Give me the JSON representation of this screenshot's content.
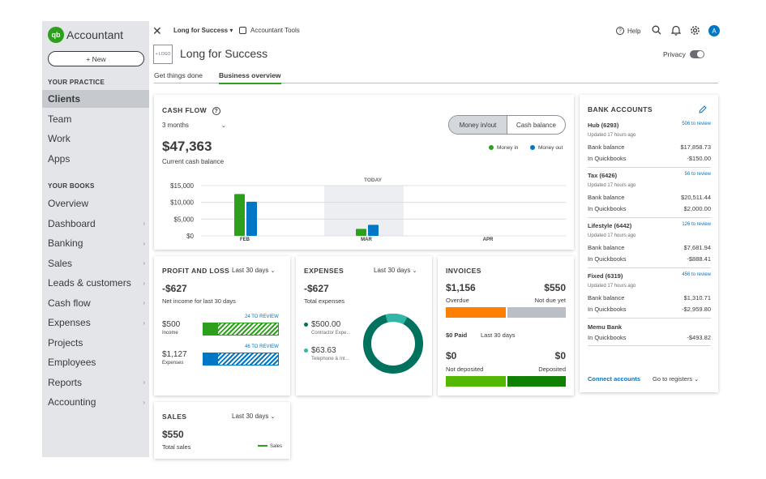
{
  "app": {
    "name": "Accountant",
    "logo_mark": "qb"
  },
  "sidebar": {
    "new_label": "+ New",
    "practice_label": "YOUR PRACTICE",
    "practice_items": [
      {
        "label": "Clients",
        "active": true
      },
      {
        "label": "Team"
      },
      {
        "label": "Work"
      },
      {
        "label": "Apps"
      }
    ],
    "books_label": "YOUR BOOKS",
    "books_items": [
      {
        "label": "Overview",
        "chevron": false
      },
      {
        "label": "Dashboard",
        "chevron": true
      },
      {
        "label": "Banking",
        "chevron": true
      },
      {
        "label": "Sales",
        "chevron": true
      },
      {
        "label": "Leads & customers",
        "chevron": true
      },
      {
        "label": "Cash flow",
        "chevron": true
      },
      {
        "label": "Expenses",
        "chevron": true
      },
      {
        "label": "Projects",
        "chevron": false
      },
      {
        "label": "Employees",
        "chevron": false
      },
      {
        "label": "Reports",
        "chevron": true
      },
      {
        "label": "Accounting",
        "chevron": true
      }
    ]
  },
  "topbar": {
    "company_menu": "Long for Success ▾",
    "tools_label": "Accountant Tools",
    "help_label": "Help",
    "avatar_initial": "A"
  },
  "header": {
    "logo_placeholder": "+ LOGO",
    "company_name": "Long for Success",
    "privacy_label": "Privacy"
  },
  "tabs": [
    {
      "label": "Get things done"
    },
    {
      "label": "Business overview",
      "active": true
    }
  ],
  "cashflow": {
    "title": "CASH FLOW",
    "period": "3 months",
    "toggle": [
      "Money in/out",
      "Cash balance"
    ],
    "balance": "$47,363",
    "balance_label": "Current cash balance",
    "legend_in": "Money in",
    "legend_out": "Money out",
    "today_label": "TODAY"
  },
  "chart_data": {
    "type": "bar",
    "categories": [
      "FEB",
      "MAR",
      "APR"
    ],
    "series": [
      {
        "name": "Money in",
        "color": "#2ca01c",
        "values": [
          12500,
          2100,
          0
        ]
      },
      {
        "name": "Money out",
        "color": "#0077c5",
        "values": [
          10200,
          3300,
          0
        ]
      }
    ],
    "yticks": [
      "$15,000",
      "$10,000",
      "$5,000",
      "$0"
    ],
    "ylim": [
      0,
      15000
    ],
    "highlight_category": "MAR"
  },
  "pnl": {
    "title": "PROFIT  AND LOSS",
    "period": "Last 30 days",
    "value": "-$627",
    "sub": "Net income for last 30 days",
    "income_value": "$500",
    "income_label": "Income",
    "income_review": "24 TO REVIEW",
    "expenses_value": "$1,127",
    "expenses_label": "Expenses",
    "expenses_review": "46 TO REVIEW",
    "income_fraction": 0.2,
    "expenses_fraction": 0.2
  },
  "expenses": {
    "title": "EXPENSES",
    "period": "Last 30 days",
    "value": "-$627",
    "sub": "Total expenses",
    "items": [
      {
        "amount": "$500.00",
        "label": "Contractor Expe...",
        "color": "#00725d"
      },
      {
        "amount": "$63.63",
        "label": "Telephone & Int...",
        "color": "#31b6a8"
      }
    ]
  },
  "invoices": {
    "title": "INVOICES",
    "overdue_value": "$1,156",
    "overdue_label": "Overdue",
    "notdue_value": "$550",
    "notdue_label": "Not due yet",
    "paid_label": "$0 Paid",
    "paid_period": "Last 30 days",
    "notdep_value": "$0",
    "notdep_label": "Not deposited",
    "dep_value": "$0",
    "dep_label": "Deposited",
    "colors": {
      "overdue": "#ff8000",
      "notdue": "#babec5",
      "notdep": "#53b700",
      "dep": "#108000"
    }
  },
  "sales": {
    "title": "SALES",
    "period": "Last 30 days",
    "value": "$550",
    "sub": "Total sales",
    "legend": "Sales"
  },
  "bank": {
    "title": "BANK ACCOUNTS",
    "accounts": [
      {
        "name": "Hub (6293)",
        "review": "506 to review",
        "updated": "Updated 17 hours ago",
        "bank_label": "Bank balance",
        "bank": "$17,858.73",
        "qb_label": "In Quickbooks",
        "qb": "-$150.00"
      },
      {
        "name": "Tax (6426)",
        "review": "56 to review",
        "updated": "Updated 17 hours ago",
        "bank_label": "Bank balance",
        "bank": "$20,511.44",
        "qb_label": "In Quickbooks",
        "qb": "$2,000.00"
      },
      {
        "name": "Lifestyle (6442)",
        "review": "126 to review",
        "updated": "Updated 17 hours ago",
        "bank_label": "Bank balance",
        "bank": "$7,681.94",
        "qb_label": "In Quickbooks",
        "qb": "-$888.41"
      },
      {
        "name": "Fixed (6319)",
        "review": "456 to review",
        "updated": "Updated 17 hours ago",
        "bank_label": "Bank balance",
        "bank": "$1,310.71",
        "qb_label": "In Quickbooks",
        "qb": "-$2,959.80"
      }
    ],
    "memu": {
      "name": "Memu Bank",
      "qb_label": "In Quickbooks",
      "qb": "-$493.82"
    },
    "connect": "Connect accounts",
    "registers": "Go to registers"
  }
}
